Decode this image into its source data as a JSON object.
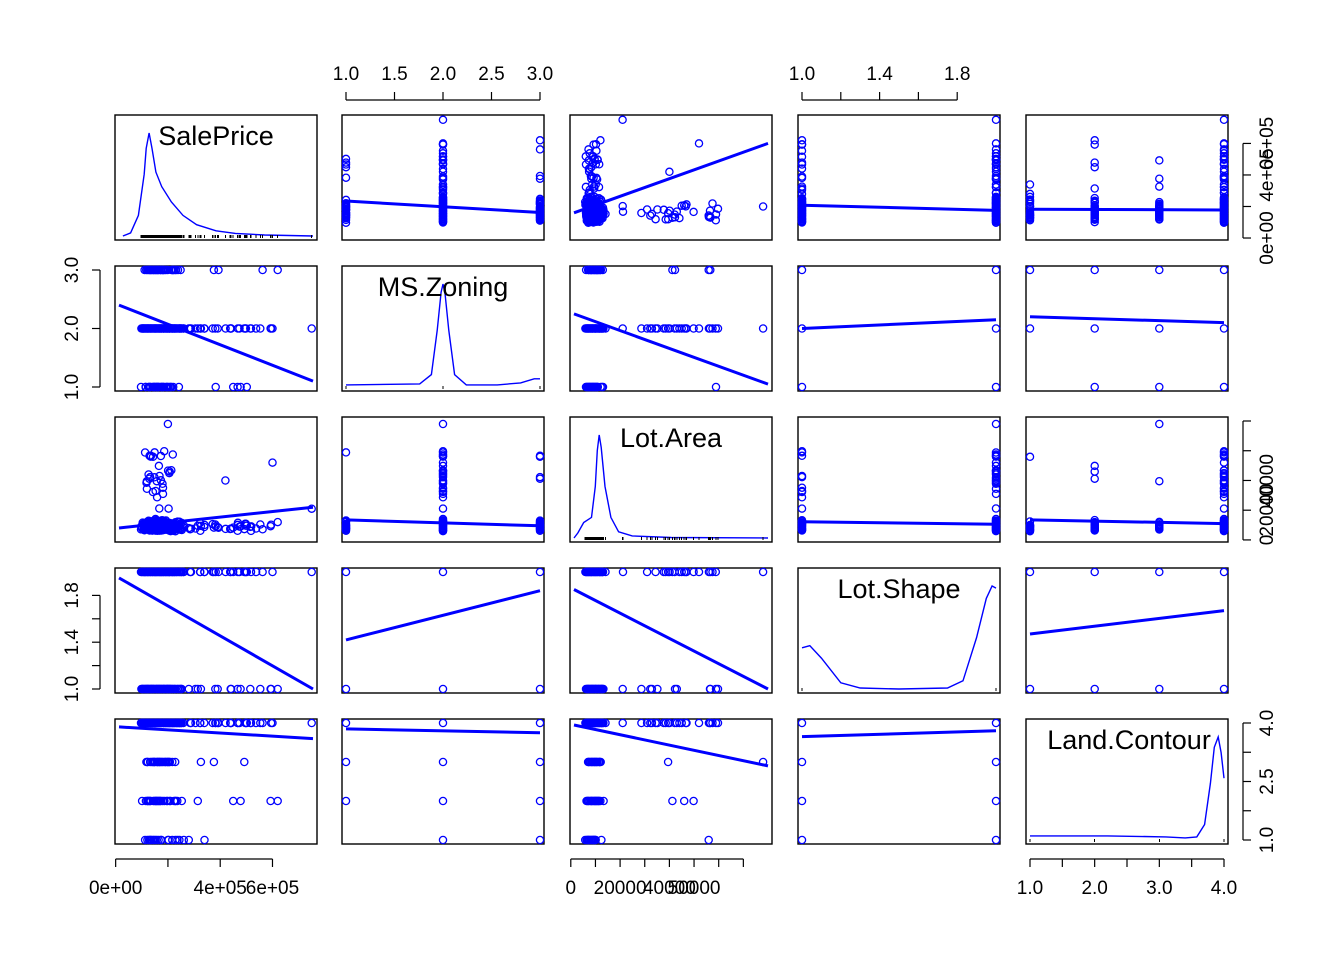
{
  "chart_data": {
    "type": "scatter",
    "subtype": "scatterplot-matrix",
    "colors": {
      "points": "#0000ff",
      "fit": "#0000ff",
      "density": "#0000ff",
      "frame": "#000000",
      "rug": "#000000"
    },
    "variables": [
      {
        "name": "SalePrice",
        "range": [
          12789,
          755000
        ],
        "ticks": [
          {
            "v": 0,
            "label": "0e+00"
          },
          {
            "v": 200000,
            "label": ""
          },
          {
            "v": 400000,
            "label": "4e+05"
          },
          {
            "v": 600000,
            "label": "6e+05"
          }
        ],
        "density": [
          [
            0.02,
            0
          ],
          [
            0.06,
            0.03
          ],
          [
            0.1,
            0.2
          ],
          [
            0.13,
            0.6
          ],
          [
            0.14,
            0.85
          ],
          [
            0.155,
            1
          ],
          [
            0.17,
            0.85
          ],
          [
            0.19,
            0.62
          ],
          [
            0.22,
            0.48
          ],
          [
            0.27,
            0.33
          ],
          [
            0.33,
            0.2
          ],
          [
            0.4,
            0.11
          ],
          [
            0.5,
            0.05
          ],
          [
            0.6,
            0.025
          ],
          [
            0.75,
            0.01
          ],
          [
            1,
            0
          ]
        ]
      },
      {
        "name": "MS.Zoning",
        "range": [
          1,
          3
        ],
        "ticks": [
          {
            "v": 1.0,
            "label": "1.0"
          },
          {
            "v": 1.5,
            "label": "1.5"
          },
          {
            "v": 2.0,
            "label": "2.0"
          },
          {
            "v": 2.5,
            "label": "2.5"
          },
          {
            "v": 3.0,
            "label": "3.0"
          }
        ],
        "density": [
          [
            0,
            0.02
          ],
          [
            0.38,
            0.03
          ],
          [
            0.44,
            0.12
          ],
          [
            0.47,
            0.55
          ],
          [
            0.49,
            0.92
          ],
          [
            0.5,
            1
          ],
          [
            0.51,
            0.92
          ],
          [
            0.53,
            0.55
          ],
          [
            0.56,
            0.12
          ],
          [
            0.62,
            0.02
          ],
          [
            0.78,
            0.02
          ],
          [
            0.9,
            0.04
          ],
          [
            0.97,
            0.08
          ],
          [
            1,
            0.08
          ]
        ]
      },
      {
        "name": "Lot.Area",
        "range": [
          1300,
          80000
        ],
        "ticks": [
          {
            "v": 0,
            "label": "0"
          },
          {
            "v": 10000,
            "label": ""
          },
          {
            "v": 20000,
            "label": "20000"
          },
          {
            "v": 30000,
            "label": ""
          },
          {
            "v": 40000,
            "label": "40000"
          },
          {
            "v": 50000,
            "label": "50000"
          },
          {
            "v": 60000,
            "label": ""
          },
          {
            "v": 70000,
            "label": ""
          }
        ],
        "ticks_right": [
          {
            "v": 0,
            "label": "0"
          },
          {
            "v": 20000,
            "label": "20000"
          },
          {
            "v": 40000,
            "label": "40000"
          },
          {
            "v": 60000,
            "label": ""
          },
          {
            "v": 80000,
            "label": ""
          }
        ],
        "density": [
          [
            0,
            0
          ],
          [
            0.02,
            0.05
          ],
          [
            0.05,
            0.15
          ],
          [
            0.09,
            0.2
          ],
          [
            0.11,
            0.5
          ],
          [
            0.12,
            0.85
          ],
          [
            0.13,
            1
          ],
          [
            0.14,
            0.88
          ],
          [
            0.16,
            0.5
          ],
          [
            0.19,
            0.2
          ],
          [
            0.23,
            0.06
          ],
          [
            0.3,
            0.02
          ],
          [
            0.5,
            0.005
          ],
          [
            1,
            0
          ]
        ]
      },
      {
        "name": "Lot.Shape",
        "range": [
          1,
          2
        ],
        "ticks": [
          {
            "v": 1.0,
            "label": "1.0"
          },
          {
            "v": 1.2,
            "label": ""
          },
          {
            "v": 1.4,
            "label": "1.4"
          },
          {
            "v": 1.6,
            "label": ""
          },
          {
            "v": 1.8,
            "label": "1.8"
          }
        ],
        "density": [
          [
            0,
            0.4
          ],
          [
            0.04,
            0.42
          ],
          [
            0.1,
            0.3
          ],
          [
            0.2,
            0.06
          ],
          [
            0.3,
            0.01
          ],
          [
            0.5,
            0
          ],
          [
            0.75,
            0.01
          ],
          [
            0.83,
            0.08
          ],
          [
            0.9,
            0.5
          ],
          [
            0.95,
            0.88
          ],
          [
            0.98,
            1
          ],
          [
            1,
            0.98
          ]
        ]
      },
      {
        "name": "Land.Contour",
        "range": [
          1,
          4
        ],
        "ticks": [
          {
            "v": 1.0,
            "label": "1.0"
          },
          {
            "v": 1.5,
            "label": ""
          },
          {
            "v": 2.0,
            "label": "2.0"
          },
          {
            "v": 2.5,
            "label": ""
          },
          {
            "v": 3.0,
            "label": "3.0"
          },
          {
            "v": 3.5,
            "label": ""
          },
          {
            "v": 4.0,
            "label": "4.0"
          }
        ],
        "ticks_right": [
          {
            "v": 1.0,
            "label": "1.0"
          },
          {
            "v": 1.75,
            "label": ""
          },
          {
            "v": 2.5,
            "label": "2.5"
          },
          {
            "v": 3.25,
            "label": ""
          },
          {
            "v": 4.0,
            "label": "4.0"
          }
        ],
        "density": [
          [
            0,
            0.04
          ],
          [
            0.4,
            0.04
          ],
          [
            0.7,
            0.03
          ],
          [
            0.8,
            0.02
          ],
          [
            0.86,
            0.03
          ],
          [
            0.9,
            0.15
          ],
          [
            0.93,
            0.55
          ],
          [
            0.95,
            0.9
          ],
          [
            0.97,
            1
          ],
          [
            0.985,
            0.85
          ],
          [
            1,
            0.6
          ]
        ]
      }
    ],
    "fits": [
      {
        "x": "MS.Zoning",
        "y": "SalePrice",
        "y_at_xmin": 235000,
        "y_at_xmax": 162000
      },
      {
        "x": "Lot.Area",
        "y": "SalePrice",
        "y_at_xmin": 160000,
        "y_at_xmax": 600000
      },
      {
        "x": "Lot.Shape",
        "y": "SalePrice",
        "y_at_xmin": 208000,
        "y_at_xmax": 175000
      },
      {
        "x": "Land.Contour",
        "y": "SalePrice",
        "y_at_xmin": 183000,
        "y_at_xmax": 178000
      },
      {
        "x": "SalePrice",
        "y": "MS.Zoning",
        "y_at_xmin": 2.4,
        "y_at_xmax": 1.1
      },
      {
        "x": "Lot.Area",
        "y": "MS.Zoning",
        "y_at_xmin": 2.25,
        "y_at_xmax": 1.05
      },
      {
        "x": "Lot.Shape",
        "y": "MS.Zoning",
        "y_at_xmin": 2.0,
        "y_at_xmax": 2.15
      },
      {
        "x": "Land.Contour",
        "y": "MS.Zoning",
        "y_at_xmin": 2.2,
        "y_at_xmax": 2.1
      },
      {
        "x": "SalePrice",
        "y": "Lot.Area",
        "y_at_xmin": 8000,
        "y_at_xmax": 22000
      },
      {
        "x": "MS.Zoning",
        "y": "Lot.Area",
        "y_at_xmin": 13500,
        "y_at_xmax": 9500
      },
      {
        "x": "Lot.Shape",
        "y": "Lot.Area",
        "y_at_xmin": 12200,
        "y_at_xmax": 10500
      },
      {
        "x": "Land.Contour",
        "y": "Lot.Area",
        "y_at_xmin": 13500,
        "y_at_xmax": 11000
      },
      {
        "x": "SalePrice",
        "y": "Lot.Shape",
        "y_at_xmin": 1.95,
        "y_at_xmax": 1.0
      },
      {
        "x": "MS.Zoning",
        "y": "Lot.Shape",
        "y_at_xmin": 1.42,
        "y_at_xmax": 1.84
      },
      {
        "x": "Lot.Area",
        "y": "Lot.Shape",
        "y_at_xmin": 1.85,
        "y_at_xmax": 1.0
      },
      {
        "x": "Land.Contour",
        "y": "Lot.Shape",
        "y_at_xmin": 1.47,
        "y_at_xmax": 1.67
      },
      {
        "x": "SalePrice",
        "y": "Land.Contour",
        "y_at_xmin": 3.9,
        "y_at_xmax": 3.6
      },
      {
        "x": "MS.Zoning",
        "y": "Land.Contour",
        "y_at_xmin": 3.85,
        "y_at_xmax": 3.75
      },
      {
        "x": "Lot.Area",
        "y": "Land.Contour",
        "y_at_xmin": 3.95,
        "y_at_xmax": 2.9
      },
      {
        "x": "Lot.Shape",
        "y": "Land.Contour",
        "y_at_xmin": 3.65,
        "y_at_xmax": 3.8
      }
    ]
  }
}
